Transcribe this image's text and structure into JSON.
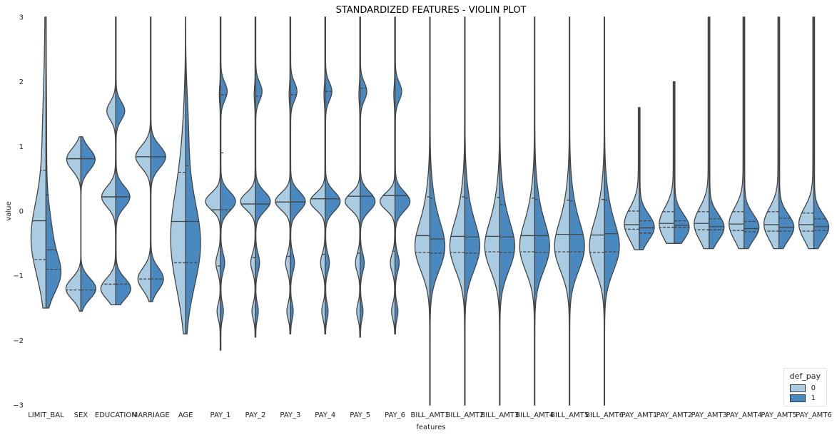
{
  "chart_data": {
    "type": "violin",
    "title": "STANDARDIZED FEATURES - VIOLIN PLOT",
    "xlabel": "features",
    "ylabel": "value",
    "ylim": [
      -3,
      3
    ],
    "yticks": [
      -3,
      -2,
      -1,
      0,
      1,
      2,
      3
    ],
    "grid": false,
    "split": true,
    "inner": "quartile",
    "legend_position": "bottom-right",
    "legend_title": "def_pay",
    "categories": [
      "LIMIT_BAL",
      "SEX",
      "EDUCATION",
      "MARRIAGE",
      "AGE",
      "PAY_1",
      "PAY_2",
      "PAY_3",
      "PAY_4",
      "PAY_5",
      "PAY_6",
      "BILL_AMT1",
      "BILL_AMT2",
      "BILL_AMT3",
      "BILL_AMT4",
      "BILL_AMT5",
      "BILL_AMT6",
      "PAY_AMT1",
      "PAY_AMT2",
      "PAY_AMT3",
      "PAY_AMT4",
      "PAY_AMT5",
      "PAY_AMT6"
    ],
    "series": [
      {
        "name": "0",
        "color": "#a9cce3",
        "quartiles": [
          [
            -0.75,
            -0.15,
            0.63
          ],
          [
            -1.22,
            0.81,
            0.81
          ],
          [
            -1.13,
            0.22,
            0.22
          ],
          [
            -1.05,
            0.84,
            0.84
          ],
          [
            -0.8,
            -0.16,
            0.6
          ],
          [
            -0.85,
            0.02,
            0.02
          ],
          [
            -0.72,
            0.11,
            0.11
          ],
          [
            -0.7,
            0.14,
            0.14
          ],
          [
            -0.67,
            0.19,
            0.19
          ],
          [
            -0.65,
            0.23,
            0.23
          ],
          [
            -0.62,
            0.24,
            0.24
          ],
          [
            -0.64,
            -0.38,
            0.22
          ],
          [
            -0.64,
            -0.39,
            0.22
          ],
          [
            -0.63,
            -0.39,
            0.21
          ],
          [
            -0.63,
            -0.38,
            0.2
          ],
          [
            -0.63,
            -0.36,
            0.17
          ],
          [
            -0.64,
            -0.37,
            0.18
          ],
          [
            -0.28,
            -0.21,
            0.0
          ],
          [
            -0.25,
            -0.19,
            -0.01
          ],
          [
            -0.29,
            -0.19,
            -0.01
          ],
          [
            -0.3,
            -0.2,
            -0.01
          ],
          [
            -0.31,
            -0.21,
            -0.01
          ],
          [
            -0.31,
            -0.21,
            -0.03
          ]
        ]
      },
      {
        "name": "1",
        "color": "#4a89c0",
        "quartiles": [
          [
            -0.9,
            -0.6,
            0.25
          ],
          [
            -1.22,
            0.81,
            0.81
          ],
          [
            -1.13,
            0.22,
            0.22
          ],
          [
            -1.05,
            0.84,
            0.84
          ],
          [
            -0.8,
            -0.16,
            0.7
          ],
          [
            0.02,
            0.9,
            1.8
          ],
          [
            0.11,
            0.11,
            1.78
          ],
          [
            0.14,
            0.14,
            1.8
          ],
          [
            0.19,
            0.19,
            1.85
          ],
          [
            0.23,
            0.23,
            1.9
          ],
          [
            0.24,
            0.24,
            0.24
          ],
          [
            -0.65,
            -0.43,
            0.2
          ],
          [
            -0.65,
            -0.4,
            0.2
          ],
          [
            -0.64,
            -0.4,
            0.1
          ],
          [
            -0.64,
            -0.38,
            0.18
          ],
          [
            -0.63,
            -0.36,
            0.16
          ],
          [
            -0.63,
            -0.35,
            0.17
          ],
          [
            -0.34,
            -0.26,
            -0.15
          ],
          [
            -0.25,
            -0.22,
            -0.15
          ],
          [
            -0.29,
            -0.24,
            -0.12
          ],
          [
            -0.32,
            -0.27,
            -0.16
          ],
          [
            -0.31,
            -0.25,
            -0.11
          ],
          [
            -0.3,
            -0.24,
            -0.12
          ]
        ]
      }
    ]
  },
  "legend": {
    "title": "def_pay",
    "items": [
      {
        "label": "0",
        "color": "#a9cce3"
      },
      {
        "label": "1",
        "color": "#4a89c0"
      }
    ]
  }
}
